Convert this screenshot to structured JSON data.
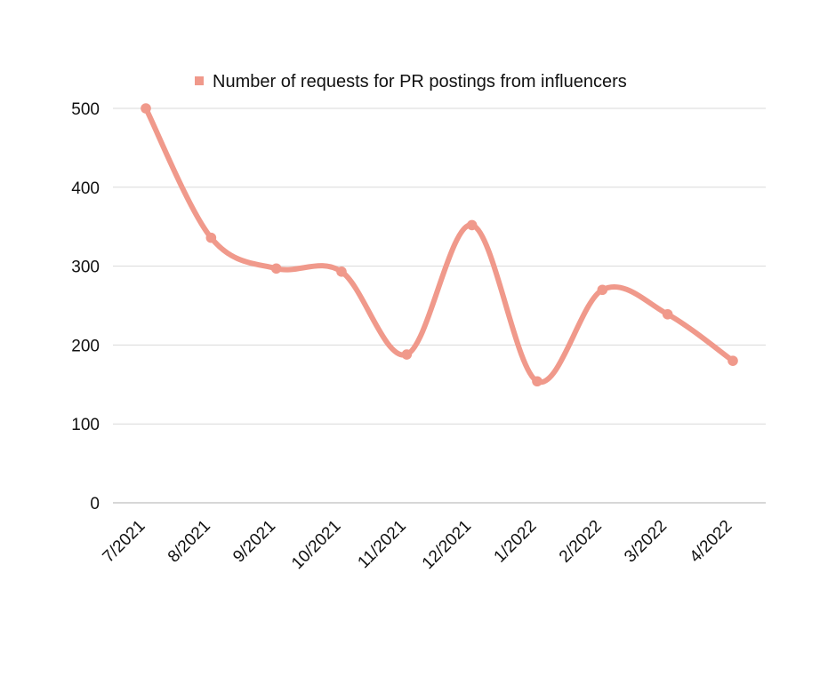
{
  "chart_data": {
    "type": "line",
    "title": "",
    "xlabel": "",
    "ylabel": "",
    "categories": [
      "7/2021",
      "8/2021",
      "9/2021",
      "10/2021",
      "11/2021",
      "12/2021",
      "1/2022",
      "2/2022",
      "3/2022",
      "4/2022"
    ],
    "series": [
      {
        "name": "Number of requests for PR postings from influencers",
        "values": [
          500,
          336,
          297,
          293,
          188,
          352,
          154,
          270,
          239,
          180
        ],
        "color": "#F0998B"
      }
    ],
    "ylim": [
      0,
      500
    ],
    "yticks": [
      0,
      100,
      200,
      300,
      400,
      500
    ],
    "grid": true,
    "smooth": true,
    "legend_position": "top-center"
  }
}
